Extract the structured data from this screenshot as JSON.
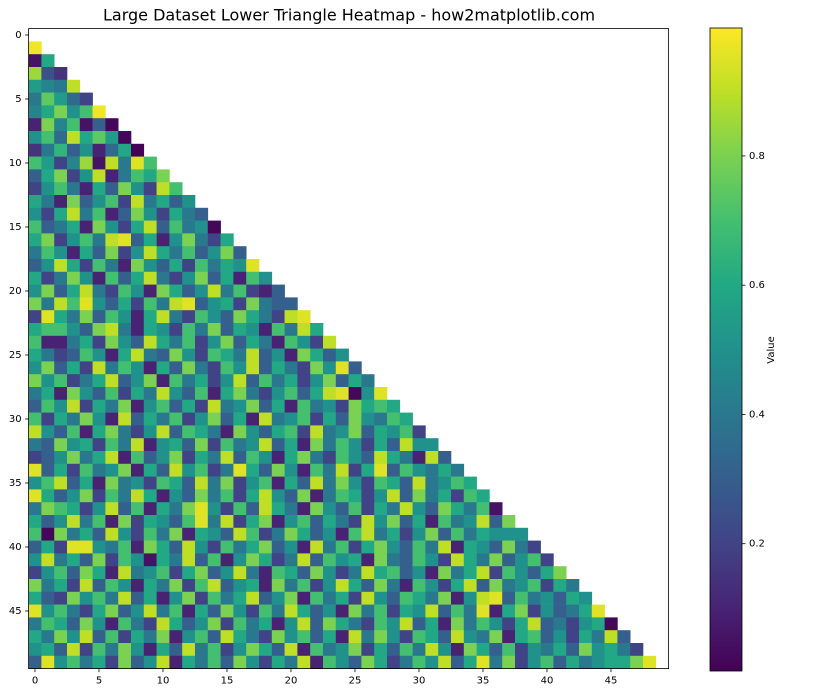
{
  "chart_data": {
    "type": "heatmap",
    "title": "Large Dataset Lower Triangle Heatmap - how2matplotlib.com",
    "colorbar_label": "Value",
    "colormap": "viridis",
    "clim": [
      0.003,
      0.998
    ],
    "cticks": [
      0.2,
      0.4,
      0.6,
      0.8
    ],
    "xlim": [
      -0.5,
      49.5
    ],
    "ylim": [
      49.5,
      -0.5
    ],
    "xticks": [
      0,
      5,
      10,
      15,
      20,
      25,
      30,
      35,
      40,
      45
    ],
    "yticks": [
      0,
      5,
      10,
      15,
      20,
      25,
      30,
      35,
      40,
      45
    ],
    "matrix": [
      [],
      [
        0.98
      ],
      [
        0.05,
        0.6
      ],
      [
        0.85,
        0.25,
        0.15
      ],
      [
        0.55,
        0.45,
        0.4,
        0.9
      ],
      [
        0.4,
        0.75,
        0.55,
        0.35,
        0.2
      ],
      [
        0.45,
        0.6,
        0.8,
        0.5,
        0.7,
        0.98
      ],
      [
        0.1,
        0.8,
        0.45,
        0.7,
        0.05,
        0.3,
        0.02
      ],
      [
        0.5,
        0.7,
        0.35,
        0.9,
        0.6,
        0.75,
        0.55,
        0.02
      ],
      [
        0.15,
        0.4,
        0.65,
        0.3,
        0.5,
        0.1,
        0.35,
        0.6,
        0.01
      ],
      [
        0.7,
        0.55,
        0.2,
        0.45,
        0.85,
        0.05,
        0.9,
        0.4,
        0.95,
        0.7
      ],
      [
        0.3,
        0.6,
        0.8,
        0.2,
        0.5,
        0.9,
        0.1,
        0.4,
        0.7,
        0.6,
        0.8
      ],
      [
        0.2,
        0.5,
        0.7,
        0.4,
        0.1,
        0.6,
        0.3,
        0.8,
        0.5,
        0.2,
        0.9,
        0.7
      ],
      [
        0.6,
        0.4,
        0.1,
        0.8,
        0.3,
        0.5,
        0.7,
        0.2,
        0.9,
        0.4,
        0.6,
        0.3,
        0.5
      ],
      [
        0.5,
        0.2,
        0.6,
        0.9,
        0.4,
        0.7,
        0.1,
        0.3,
        0.8,
        0.5,
        0.2,
        0.6,
        0.4,
        0.3
      ],
      [
        0.7,
        0.3,
        0.4,
        0.6,
        0.1,
        0.8,
        0.5,
        0.2,
        0.6,
        0.9,
        0.3,
        0.7,
        0.4,
        0.5,
        0.02
      ],
      [
        0.6,
        0.8,
        0.2,
        0.5,
        0.7,
        0.4,
        0.9,
        0.95,
        0.3,
        0.6,
        0.1,
        0.5,
        0.8,
        0.4,
        0.2,
        0.6
      ],
      [
        0.4,
        0.7,
        0.5,
        0.1,
        0.6,
        0.3,
        0.8,
        0.2,
        0.5,
        0.9,
        0.6,
        0.4,
        0.7,
        0.3,
        0.5,
        0.8,
        0.3
      ],
      [
        0.3,
        0.5,
        0.9,
        0.6,
        0.2,
        0.7,
        0.4,
        0.1,
        0.8,
        0.5,
        0.3,
        0.6,
        0.2,
        0.7,
        0.4,
        0.6,
        0.5,
        0.95
      ],
      [
        0.6,
        0.2,
        0.4,
        0.8,
        0.5,
        0.1,
        0.7,
        0.3,
        0.6,
        0.9,
        0.4,
        0.2,
        0.5,
        0.8,
        0.3,
        0.6,
        0.1,
        0.7,
        0.5
      ],
      [
        0.5,
        0.8,
        0.3,
        0.6,
        0.9,
        0.4,
        0.2,
        0.7,
        0.5,
        0.1,
        0.8,
        0.6,
        0.3,
        0.5,
        0.9,
        0.4,
        0.7,
        0.2,
        0.1,
        0.3
      ],
      [
        0.8,
        0.4,
        0.9,
        0.7,
        0.95,
        0.5,
        0.3,
        0.6,
        0.2,
        0.7,
        0.4,
        0.9,
        0.95,
        0.3,
        0.5,
        0.6,
        0.2,
        0.8,
        0.4,
        0.3,
        0.3
      ],
      [
        0.2,
        0.95,
        0.6,
        0.4,
        0.8,
        0.3,
        0.7,
        0.5,
        0.1,
        0.6,
        0.9,
        0.4,
        0.2,
        0.7,
        0.5,
        0.3,
        0.8,
        0.6,
        0.4,
        0.2,
        0.9,
        0.95
      ],
      [
        0.6,
        0.7,
        0.7,
        0.5,
        0.3,
        0.8,
        0.9,
        0.4,
        0.1,
        0.6,
        0.5,
        0.2,
        0.7,
        0.4,
        0.8,
        0.3,
        0.6,
        0.5,
        0.1,
        0.7,
        0.4,
        0.9,
        0.6
      ],
      [
        0.7,
        0.1,
        0.1,
        0.4,
        0.6,
        0.2,
        0.8,
        0.5,
        0.3,
        0.9,
        0.6,
        0.4,
        0.7,
        0.2,
        0.5,
        0.8,
        0.3,
        0.6,
        0.4,
        0.1,
        0.7,
        0.5,
        0.2,
        0.9
      ],
      [
        0.6,
        0.4,
        0.2,
        0.3,
        0.7,
        0.5,
        0.1,
        0.6,
        0.9,
        0.4,
        0.3,
        0.8,
        0.5,
        0.2,
        0.7,
        0.6,
        0.4,
        0.9,
        0.3,
        0.5,
        0.1,
        0.8,
        0.6,
        0.3,
        0.5
      ],
      [
        0.5,
        0.8,
        0.3,
        0.6,
        0.2,
        0.9,
        0.4,
        0.7,
        0.5,
        0.1,
        0.6,
        0.3,
        0.8,
        0.4,
        0.2,
        0.7,
        0.5,
        0.9,
        0.3,
        0.6,
        0.4,
        0.2,
        0.8,
        0.5,
        0.95,
        0.3
      ],
      [
        0.8,
        0.5,
        0.7,
        0.2,
        0.4,
        0.6,
        0.9,
        0.3,
        0.5,
        0.8,
        0.1,
        0.7,
        0.4,
        0.6,
        0.2,
        0.5,
        0.9,
        0.3,
        0.7,
        0.4,
        0.6,
        0.2,
        0.5,
        0.8,
        0.3,
        0.6,
        0.4
      ],
      [
        0.4,
        0.6,
        0.1,
        0.8,
        0.5,
        0.3,
        0.7,
        0.2,
        0.6,
        0.4,
        0.9,
        0.5,
        0.3,
        0.7,
        0.1,
        0.6,
        0.8,
        0.4,
        0.2,
        0.5,
        0.7,
        0.3,
        0.6,
        0.9,
        0.95,
        0.02,
        0.5,
        0.95
      ],
      [
        0.3,
        0.7,
        0.5,
        0.9,
        0.2,
        0.6,
        0.4,
        0.8,
        0.1,
        0.5,
        0.7,
        0.3,
        0.6,
        0.2,
        0.9,
        0.4,
        0.5,
        0.8,
        0.3,
        0.6,
        0.1,
        0.7,
        0.4,
        0.5,
        0.2,
        0.8,
        0.6,
        0.7,
        0.6
      ],
      [
        0.7,
        0.2,
        0.6,
        0.4,
        0.8,
        0.5,
        0.1,
        0.9,
        0.3,
        0.6,
        0.4,
        0.7,
        0.2,
        0.5,
        0.8,
        0.3,
        0.6,
        0.1,
        0.9,
        0.4,
        0.5,
        0.7,
        0.2,
        0.6,
        0.3,
        0.8,
        0.5,
        0.4,
        0.7,
        0.6
      ],
      [
        0.9,
        0.5,
        0.3,
        0.7,
        0.1,
        0.6,
        0.8,
        0.4,
        0.2,
        0.5,
        0.9,
        0.3,
        0.7,
        0.6,
        0.4,
        0.1,
        0.8,
        0.5,
        0.3,
        0.6,
        0.7,
        0.2,
        0.9,
        0.4,
        0.5,
        0.8,
        0.3,
        0.6,
        0.5,
        0.7,
        0.2
      ],
      [
        0.4,
        0.3,
        0.8,
        0.5,
        0.6,
        0.2,
        0.7,
        0.4,
        0.9,
        0.1,
        0.5,
        0.6,
        0.3,
        0.8,
        0.2,
        0.7,
        0.4,
        0.5,
        0.9,
        0.3,
        0.6,
        0.1,
        0.8,
        0.4,
        0.7,
        0.5,
        0.2,
        0.6,
        0.3,
        0.9,
        0.5,
        0.5
      ],
      [
        0.2,
        0.3,
        0.5,
        0.8,
        0.4,
        0.6,
        0.9,
        0.1,
        0.7,
        0.3,
        0.5,
        0.8,
        0.2,
        0.6,
        0.4,
        0.9,
        0.3,
        0.7,
        0.5,
        0.1,
        0.6,
        0.8,
        0.4,
        0.2,
        0.7,
        0.5,
        0.3,
        0.9,
        0.6,
        0.4,
        0.1,
        0.9,
        0.3
      ],
      [
        0.95,
        0.3,
        0.6,
        0.2,
        0.7,
        0.4,
        0.5,
        0.8,
        0.1,
        0.6,
        0.3,
        0.9,
        0.5,
        0.7,
        0.2,
        0.4,
        0.95,
        0.6,
        0.3,
        0.8,
        0.5,
        0.1,
        0.7,
        0.4,
        0.9,
        0.2,
        0.6,
        0.95,
        0.3,
        0.7,
        0.5,
        0.4,
        0.6,
        0.4
      ],
      [
        0.5,
        0.7,
        0.9,
        0.3,
        0.6,
        0.1,
        0.8,
        0.4,
        0.5,
        0.2,
        0.7,
        0.6,
        0.3,
        0.9,
        0.4,
        0.8,
        0.2,
        0.5,
        0.7,
        0.1,
        0.6,
        0.3,
        0.9,
        0.4,
        0.8,
        0.5,
        0.2,
        0.7,
        0.6,
        0.3,
        0.9,
        0.4,
        0.5,
        0.7,
        0.6
      ],
      [
        0.95,
        0.6,
        0.3,
        0.5,
        0.8,
        0.2,
        0.7,
        0.4,
        0.9,
        0.6,
        0.1,
        0.5,
        0.3,
        0.8,
        0.4,
        0.7,
        0.2,
        0.6,
        0.9,
        0.5,
        0.3,
        0.8,
        0.1,
        0.4,
        0.7,
        0.6,
        0.2,
        0.5,
        0.9,
        0.3,
        0.8,
        0.4,
        0.6,
        0.2,
        0.7,
        0.6
      ],
      [
        0.4,
        0.8,
        0.7,
        0.6,
        0.2,
        0.5,
        0.9,
        0.3,
        0.7,
        0.1,
        0.6,
        0.4,
        0.8,
        0.95,
        0.5,
        0.2,
        0.7,
        0.3,
        0.9,
        0.6,
        0.4,
        0.1,
        0.8,
        0.5,
        0.3,
        0.7,
        0.2,
        0.6,
        0.4,
        0.9,
        0.5,
        0.3,
        0.8,
        0.6,
        0.4,
        0.7,
        0.05
      ],
      [
        0.6,
        0.3,
        0.5,
        0.9,
        0.4,
        0.7,
        0.1,
        0.8,
        0.2,
        0.6,
        0.5,
        0.3,
        0.7,
        0.95,
        0.4,
        0.9,
        0.2,
        0.6,
        0.8,
        0.1,
        0.5,
        0.7,
        0.3,
        0.6,
        0.4,
        0.2,
        0.9,
        0.5,
        0.8,
        0.3,
        0.6,
        0.1,
        0.7,
        0.4,
        0.5,
        0.9,
        0.3,
        0.8
      ],
      [
        0.7,
        0.02,
        0.8,
        0.4,
        0.6,
        0.3,
        0.9,
        0.5,
        0.2,
        0.7,
        0.4,
        0.8,
        0.1,
        0.6,
        0.5,
        0.3,
        0.9,
        0.7,
        0.2,
        0.4,
        0.8,
        0.6,
        0.3,
        0.5,
        0.1,
        0.7,
        0.9,
        0.4,
        0.6,
        0.2,
        0.5,
        0.8,
        0.3,
        0.7,
        0.4,
        0.6,
        0.5,
        0.5,
        0.5
      ],
      [
        0.3,
        0.6,
        0.2,
        0.95,
        0.95,
        0.5,
        0.4,
        0.7,
        0.1,
        0.8,
        0.6,
        0.3,
        0.9,
        0.5,
        0.2,
        0.7,
        0.4,
        0.6,
        0.8,
        0.3,
        0.5,
        0.1,
        0.9,
        0.4,
        0.7,
        0.2,
        0.6,
        0.8,
        0.5,
        0.3,
        0.7,
        0.4,
        0.9,
        0.1,
        0.6,
        0.5,
        0.3,
        0.8,
        0.4,
        0.2
      ],
      [
        0.5,
        0.9,
        0.4,
        0.6,
        0.3,
        0.8,
        0.2,
        0.7,
        0.5,
        0.05,
        0.6,
        0.4,
        0.9,
        0.3,
        0.7,
        0.1,
        0.5,
        0.8,
        0.6,
        0.2,
        0.4,
        0.9,
        0.3,
        0.7,
        0.5,
        0.6,
        0.1,
        0.8,
        0.4,
        0.3,
        0.7,
        0.5,
        0.2,
        0.9,
        0.6,
        0.4,
        0.8,
        0.3,
        0.5,
        0.7,
        0.2
      ],
      [
        0.2,
        0.5,
        0.7,
        0.3,
        0.8,
        0.6,
        0.1,
        0.9,
        0.4,
        0.5,
        0.7,
        0.2,
        0.6,
        0.8,
        0.3,
        0.5,
        0.9,
        0.4,
        0.1,
        0.7,
        0.6,
        0.3,
        0.8,
        0.5,
        0.2,
        0.4,
        0.9,
        0.6,
        0.7,
        0.3,
        0.5,
        0.1,
        0.8,
        0.4,
        0.6,
        0.9,
        0.2,
        0.7,
        0.5,
        0.3,
        0.6,
        0.8
      ],
      [
        0.8,
        0.4,
        0.6,
        0.2,
        0.9,
        0.3,
        0.7,
        0.5,
        0.1,
        0.6,
        0.4,
        0.8,
        0.2,
        0.7,
        0.9,
        0.3,
        0.5,
        0.6,
        0.1,
        0.8,
        0.4,
        0.7,
        0.2,
        0.5,
        0.9,
        0.6,
        0.3,
        0.8,
        0.4,
        0.1,
        0.7,
        0.5,
        0.2,
        0.6,
        0.9,
        0.3,
        0.8,
        0.4,
        0.5,
        0.7,
        0.2,
        0.6,
        0.4
      ],
      [
        0.6,
        0.3,
        0.2,
        0.8,
        0.5,
        0.7,
        0.4,
        0.9,
        0.3,
        0.6,
        0.1,
        0.5,
        0.8,
        0.2,
        0.7,
        0.4,
        0.6,
        0.9,
        0.3,
        0.5,
        0.8,
        0.1,
        0.7,
        0.4,
        0.6,
        0.2,
        0.9,
        0.5,
        0.3,
        0.7,
        0.6,
        0.4,
        0.8,
        0.1,
        0.5,
        0.9,
        0.95,
        0.3,
        0.7,
        0.4,
        0.5,
        0.3,
        0.6,
        0.5
      ],
      [
        0.95,
        0.5,
        0.7,
        0.4,
        0.2,
        0.6,
        0.8,
        0.3,
        0.5,
        0.9,
        0.4,
        0.7,
        0.1,
        0.6,
        0.3,
        0.8,
        0.5,
        0.2,
        0.7,
        0.4,
        0.9,
        0.6,
        0.3,
        0.5,
        0.1,
        0.8,
        0.4,
        0.7,
        0.2,
        0.6,
        0.5,
        0.9,
        0.3,
        0.7,
        0.4,
        0.95,
        0.1,
        0.6,
        0.8,
        0.2,
        0.5,
        0.3,
        0.4,
        0.6,
        0.95
      ],
      [
        0.4,
        0.7,
        0.6,
        0.3,
        0.8,
        0.5,
        0.1,
        0.7,
        0.4,
        0.2,
        0.9,
        0.6,
        0.3,
        0.5,
        0.8,
        0.2,
        0.7,
        0.4,
        0.6,
        0.1,
        0.5,
        0.9,
        0.3,
        0.8,
        0.6,
        0.4,
        0.2,
        0.7,
        0.5,
        0.9,
        0.3,
        0.6,
        0.1,
        0.8,
        0.4,
        0.7,
        0.5,
        0.2,
        0.6,
        0.9,
        0.3,
        0.4,
        0.2,
        0.5,
        0.6,
        0.02
      ],
      [
        0.6,
        0.4,
        0.8,
        0.5,
        0.9,
        0.3,
        0.7,
        0.2,
        0.6,
        0.4,
        0.8,
        0.1,
        0.5,
        0.7,
        0.3,
        0.9,
        0.6,
        0.4,
        0.2,
        0.8,
        0.5,
        0.7,
        0.3,
        0.6,
        0.1,
        0.9,
        0.4,
        0.8,
        0.5,
        0.2,
        0.7,
        0.6,
        0.3,
        0.9,
        0.5,
        0.4,
        0.8,
        0.1,
        0.6,
        0.7,
        0.3,
        0.5,
        0.2,
        0.6,
        0.4,
        0.9,
        0.3
      ],
      [
        0.5,
        0.6,
        0.3,
        0.9,
        0.2,
        0.7,
        0.4,
        0.8,
        0.5,
        0.1,
        0.6,
        0.3,
        0.9,
        0.4,
        0.7,
        0.2,
        0.5,
        0.8,
        0.6,
        0.3,
        0.9,
        0.1,
        0.7,
        0.4,
        0.5,
        0.8,
        0.2,
        0.6,
        0.3,
        0.7,
        0.4,
        0.9,
        0.5,
        0.1,
        0.8,
        0.6,
        0.3,
        0.7,
        0.2,
        0.5,
        0.4,
        0.6,
        0.3,
        0.8,
        0.5,
        0.6,
        0.4,
        0.2
      ],
      [
        0.3,
        0.95,
        0.5,
        0.7,
        0.4,
        0.6,
        0.2,
        0.8,
        0.3,
        0.5,
        0.9,
        0.1,
        0.6,
        0.4,
        0.7,
        0.3,
        0.8,
        0.5,
        0.2,
        0.6,
        0.4,
        0.9,
        0.1,
        0.7,
        0.5,
        0.3,
        0.8,
        0.6,
        0.2,
        0.4,
        0.7,
        0.5,
        0.9,
        0.3,
        0.6,
        0.95,
        0.4,
        0.8,
        0.2,
        0.5,
        0.7,
        0.3,
        0.6,
        0.4,
        0.5,
        0.6,
        0.6,
        0.8,
        0.95
      ]
    ]
  }
}
